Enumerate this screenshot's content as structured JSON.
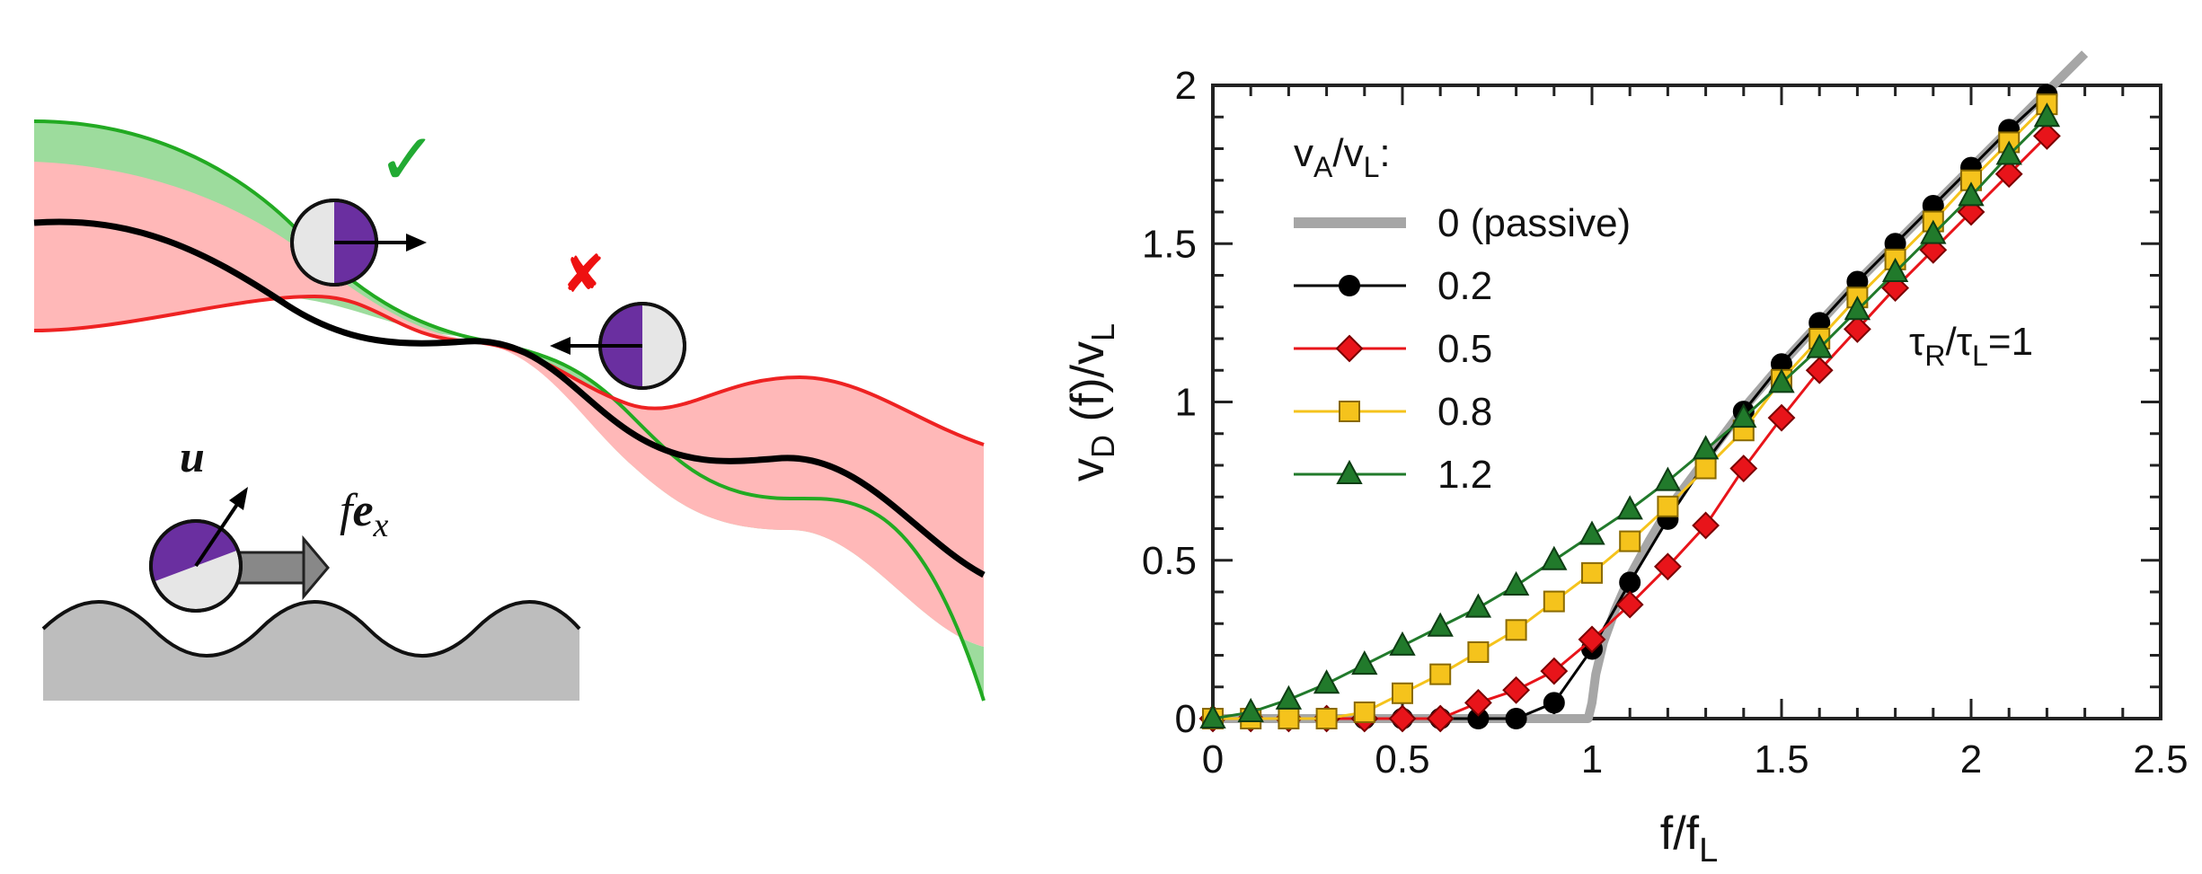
{
  "panel_left": {
    "check_mark": "✓",
    "cross_mark": "✘",
    "vector_u": "u",
    "force_prefix": "f",
    "force_vector": "e",
    "force_subscript": "x",
    "colors": {
      "band_green": "#8fd88f",
      "band_red": "#ffb3b3",
      "edge_green": "#22aa22",
      "edge_red": "#ee2222",
      "particle_purple": "#6a2fa0",
      "particle_grey": "#e6e6e6",
      "substrate": "#bdbdbd"
    }
  },
  "chart_data": {
    "type": "line",
    "xlabel": {
      "base": "f/f",
      "sub": "L"
    },
    "ylabel": {
      "pre": "v",
      "sub1": "D",
      "mid": " (f)/v",
      "sub2": "L"
    },
    "xlim": [
      0,
      2.5
    ],
    "ylim": [
      0,
      2
    ],
    "xticks": [
      "0",
      "0.5",
      "1",
      "1.5",
      "2",
      "2.5"
    ],
    "yticks": [
      "0",
      "0.5",
      "1",
      "1.5",
      "2"
    ],
    "grid": false,
    "legend_position": "top-left",
    "legend_title": {
      "pre": "v",
      "sub1": "A",
      "mid": "/v",
      "sub2": "L",
      "post": ":"
    },
    "annotation": {
      "pre": "τ",
      "sub1": "R",
      "mid": "/τ",
      "sub2": "L",
      "post": "=1"
    },
    "series": [
      {
        "name": "0 (passive)",
        "color": "#a6a6a6",
        "marker": "none",
        "x": [
          0,
          0.2,
          0.4,
          0.6,
          0.8,
          0.99,
          1.0,
          1.01,
          1.03,
          1.06,
          1.1,
          1.15,
          1.2,
          1.3,
          1.4,
          1.5,
          1.6,
          1.7,
          1.8,
          1.9,
          2.0,
          2.1,
          2.2,
          2.3
        ],
        "y": [
          0,
          0,
          0,
          0,
          0,
          0,
          0.05,
          0.14,
          0.24,
          0.34,
          0.45,
          0.56,
          0.66,
          0.82,
          0.98,
          1.12,
          1.25,
          1.38,
          1.5,
          1.62,
          1.74,
          1.86,
          1.98,
          2.1
        ]
      },
      {
        "name": "0.2",
        "color": "#000000",
        "marker": "circle",
        "x": [
          0,
          0.1,
          0.2,
          0.3,
          0.4,
          0.5,
          0.6,
          0.7,
          0.8,
          0.9,
          1.0,
          1.1,
          1.2,
          1.3,
          1.4,
          1.5,
          1.6,
          1.7,
          1.8,
          1.9,
          2.0,
          2.1,
          2.2
        ],
        "y": [
          0,
          0,
          0,
          0,
          0,
          0,
          0,
          0,
          0,
          0.05,
          0.22,
          0.43,
          0.63,
          0.81,
          0.97,
          1.12,
          1.25,
          1.38,
          1.5,
          1.62,
          1.74,
          1.86,
          1.97
        ]
      },
      {
        "name": "0.5",
        "color": "#e8141a",
        "marker": "diamond",
        "x": [
          0,
          0.1,
          0.2,
          0.3,
          0.4,
          0.5,
          0.6,
          0.7,
          0.8,
          0.9,
          1.0,
          1.1,
          1.2,
          1.3,
          1.4,
          1.5,
          1.6,
          1.7,
          1.8,
          1.9,
          2.0,
          2.1,
          2.2
        ],
        "y": [
          0,
          0,
          0,
          0,
          0,
          0,
          0,
          0.05,
          0.09,
          0.15,
          0.25,
          0.36,
          0.48,
          0.61,
          0.79,
          0.95,
          1.1,
          1.23,
          1.36,
          1.48,
          1.6,
          1.72,
          1.84
        ]
      },
      {
        "name": "0.8",
        "color": "#f5c31c",
        "marker": "square",
        "x": [
          0,
          0.1,
          0.2,
          0.3,
          0.4,
          0.5,
          0.6,
          0.7,
          0.8,
          0.9,
          1.0,
          1.1,
          1.2,
          1.3,
          1.4,
          1.5,
          1.6,
          1.7,
          1.8,
          1.9,
          2.0,
          2.1,
          2.2
        ],
        "y": [
          0,
          0,
          0,
          0,
          0.02,
          0.08,
          0.14,
          0.21,
          0.28,
          0.37,
          0.46,
          0.56,
          0.67,
          0.79,
          0.91,
          1.07,
          1.2,
          1.33,
          1.45,
          1.57,
          1.7,
          1.82,
          1.94
        ]
      },
      {
        "name": "1.2",
        "color": "#217a2b",
        "marker": "triangle",
        "x": [
          0,
          0.1,
          0.2,
          0.3,
          0.4,
          0.5,
          0.6,
          0.7,
          0.8,
          0.9,
          1.0,
          1.1,
          1.2,
          1.3,
          1.4,
          1.5,
          1.6,
          1.7,
          1.8,
          1.9,
          2.0,
          2.1,
          2.2
        ],
        "y": [
          0,
          0.02,
          0.06,
          0.11,
          0.17,
          0.23,
          0.29,
          0.35,
          0.42,
          0.5,
          0.58,
          0.66,
          0.75,
          0.85,
          0.95,
          1.06,
          1.17,
          1.29,
          1.41,
          1.53,
          1.65,
          1.78,
          1.9
        ]
      }
    ]
  }
}
